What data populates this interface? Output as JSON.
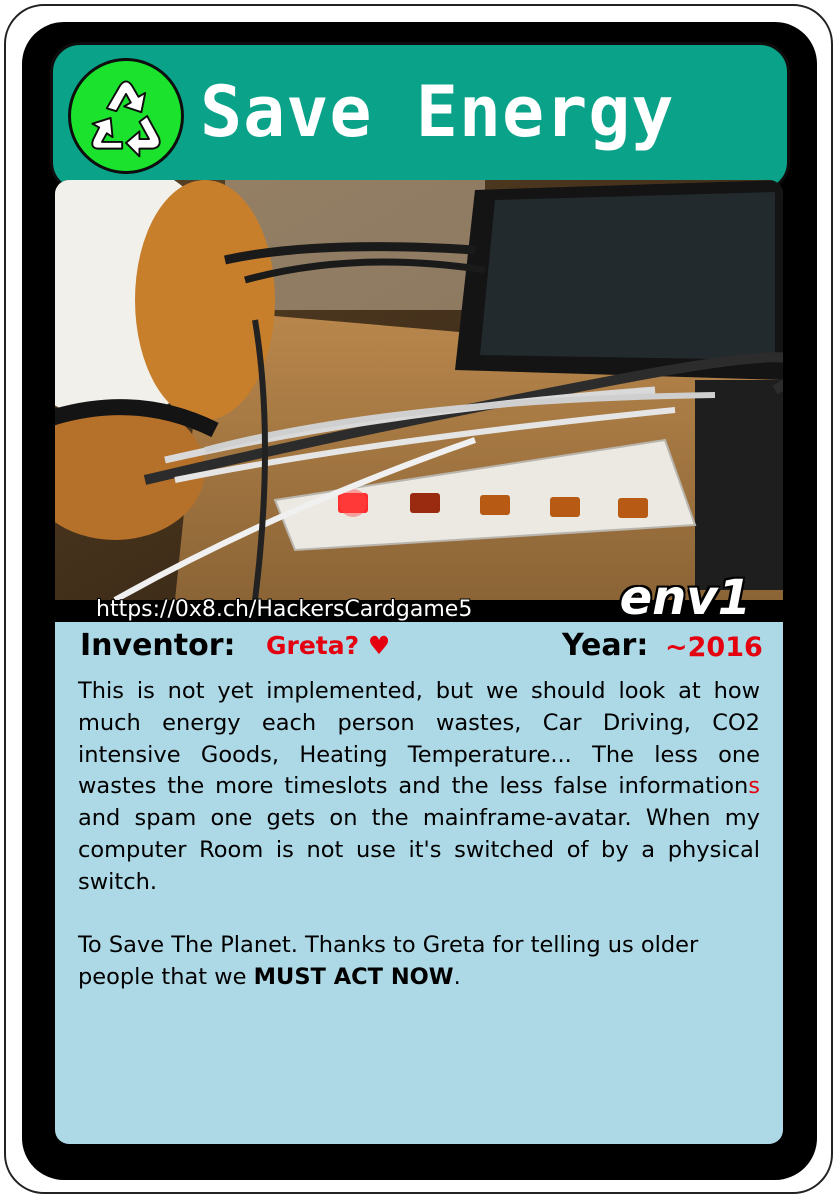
{
  "card": {
    "title": "Save Energy",
    "badge_icon": "recycle-icon",
    "card_id": "env1",
    "source_url": "https://0x8.ch/HackersCardgame5",
    "inventor_label": "Inventor:",
    "inventor_value": "Greta? ♥",
    "year_label": "Year:",
    "year_value": "~2016",
    "description_1a": "This is not yet implemented, but we should look at how much energy each person wastes, Car Driving, CO2 intensive Goods, Heating Temperature... The less one wastes the more timeslots and the less false information",
    "description_1_highlight": "s",
    "description_1b": " and spam one gets on the mainframe-avatar. When my computer Room is not use it's switched of by a physical switch.",
    "description_2a": "To Save The Planet. Thanks to Greta for telling us older people that we ",
    "description_2_bold": "MUST ACT NOW",
    "description_2b": "."
  },
  "colors": {
    "title_bar": "#0aa38a",
    "badge": "#1be22c",
    "info_panel": "#add8e6",
    "accent_red": "#e4000f",
    "frame": "#000000"
  }
}
